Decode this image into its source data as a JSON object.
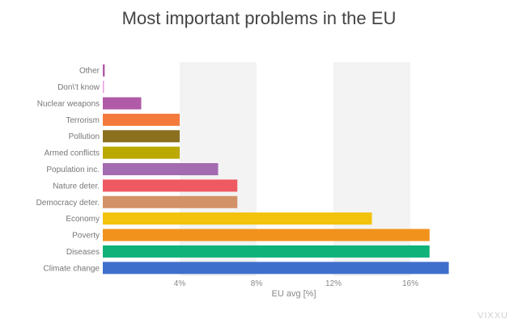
{
  "chart_data": {
    "type": "bar",
    "orientation": "horizontal",
    "title": "Most important problems in the EU",
    "xlabel": "EU avg [%]",
    "ylabel": "",
    "xlim": [
      0,
      18.5
    ],
    "xticks": [
      4,
      8,
      12,
      16
    ],
    "xtick_labels": [
      "4%",
      "8%",
      "12%",
      "16%"
    ],
    "grid": "alternating bands",
    "categories": [
      "Other",
      "Don\\'t know",
      "Nuclear weapons",
      "Terrorism",
      "Pollution",
      "Armed conflicts",
      "Population inc.",
      "Nature deter.",
      "Democracy deter.",
      "Economy",
      "Poverty",
      "Diseases",
      "Climate change"
    ],
    "values": [
      0.1,
      0.05,
      2,
      4,
      4,
      4,
      6,
      7,
      7,
      14,
      17,
      17,
      18
    ],
    "colors": [
      "#b05aa8",
      "#e89be0",
      "#b05aa8",
      "#f47a3c",
      "#8b7020",
      "#bba800",
      "#a36bb0",
      "#ef5a62",
      "#d29166",
      "#f2c20c",
      "#f0921c",
      "#0fb37a",
      "#3f6fcc"
    ]
  },
  "watermark": "VIXXU"
}
